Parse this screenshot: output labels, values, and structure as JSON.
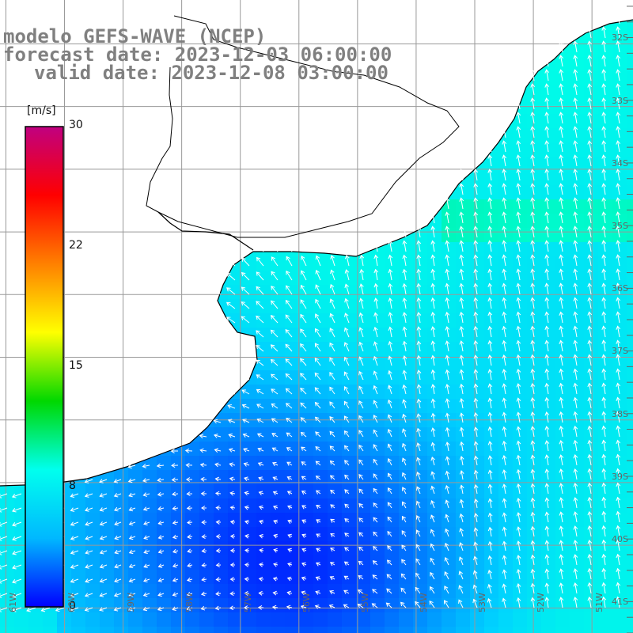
{
  "title": {
    "line1": "modelo GEFS-WAVE (NCEP)",
    "line2": "forecast date: 2023-12-03 06:00:00",
    "line3": "valid date: 2023-12-08 03:00:00"
  },
  "colorbar": {
    "unit": "[m/s]",
    "ticks": [
      "30",
      "22",
      "15",
      "8",
      "0"
    ],
    "range": [
      0,
      30
    ],
    "colors": [
      "#0000ff",
      "#00b8ff",
      "#00ffee",
      "#00d800",
      "#ffff00",
      "#ff8000",
      "#ff0000",
      "#c00080"
    ]
  },
  "lat_labels": [
    "32S",
    "33S",
    "34S",
    "35S",
    "36S",
    "37S",
    "38S",
    "39S",
    "40S",
    "41S"
  ],
  "lon_labels": [
    "61W",
    "60W",
    "59W",
    "58W",
    "57W",
    "56W",
    "55W",
    "54W",
    "53W",
    "52W",
    "51W"
  ],
  "map": {
    "lon_range": [
      -61.1,
      -50.3
    ],
    "lat_range": [
      -41.4,
      -31.3
    ],
    "land_color": "#ffffff",
    "grid_color": "#999999",
    "coast_color": "#000000",
    "arrow_color": "#ffffff"
  }
}
